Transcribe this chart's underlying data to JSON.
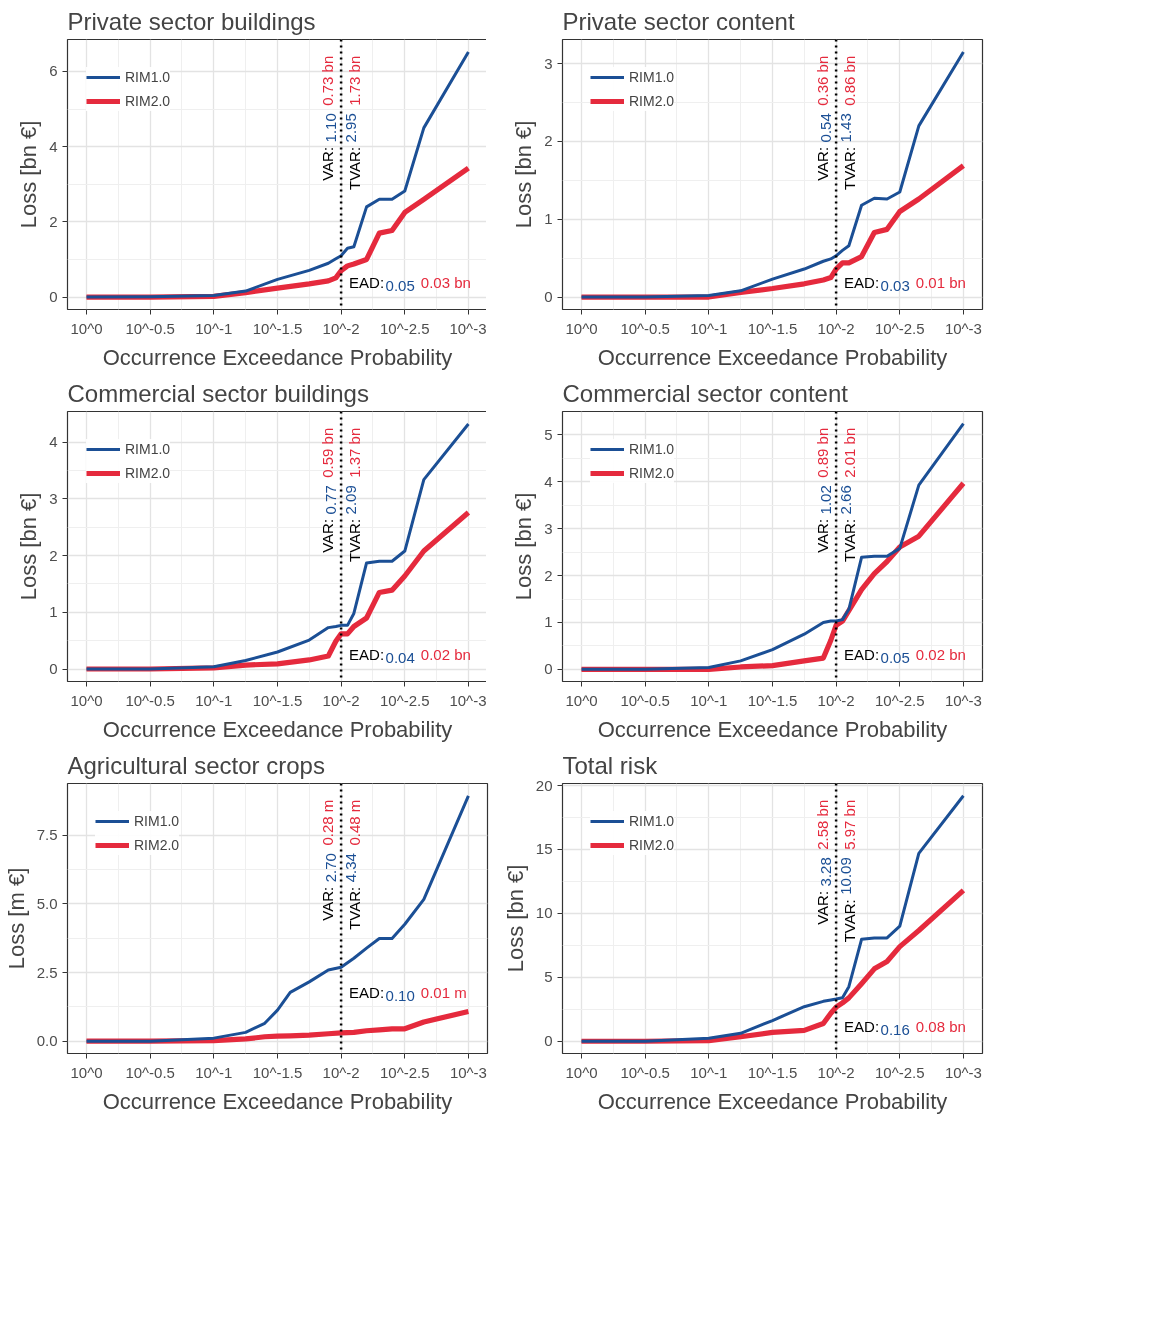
{
  "chart_data": [
    {
      "type": "line",
      "title": "Private sector buildings",
      "xlabel": "Occurrence Exceedance Probability",
      "ylabel": "Loss [bn €]",
      "log": "x",
      "grid": true,
      "legend": "top left",
      "line_style": "solid",
      "xlim": [
        1.41,
        0.000708
      ],
      "ylim": [
        -0.33,
        6.85
      ],
      "xticks": [
        {
          "value": 1,
          "label": "10^0"
        },
        {
          "value": 0.316,
          "label": "10^-0.5"
        },
        {
          "value": 0.1,
          "label": "10^-1"
        },
        {
          "value": 0.0316,
          "label": "10^-1.5"
        },
        {
          "value": 0.01,
          "label": "10^-2"
        },
        {
          "value": 0.00316,
          "label": "10^-2.5"
        },
        {
          "value": 0.001,
          "label": "10^-3"
        }
      ],
      "yticks": [
        0,
        2,
        4,
        6
      ],
      "x": [
        1,
        0.316,
        0.1,
        0.0562,
        0.0316,
        0.0178,
        0.0126,
        0.011,
        0.01,
        0.00891,
        0.00794,
        0.00631,
        0.00501,
        0.00398,
        0.00316,
        0.00224,
        0.001
      ],
      "series": [
        {
          "name": "RIM1.0",
          "color": "#1b4f95",
          "values": [
            0,
            0.01,
            0.04,
            0.16,
            0.47,
            0.71,
            0.9,
            1.02,
            1.1,
            1.3,
            1.34,
            2.4,
            2.6,
            2.6,
            2.82,
            4.5,
            6.52
          ]
        },
        {
          "name": "RIM2.0",
          "color": "#e52a3d",
          "values": [
            0,
            0,
            0.02,
            0.12,
            0.24,
            0.35,
            0.43,
            0.51,
            0.7,
            0.83,
            0.88,
            1.0,
            1.7,
            1.77,
            2.25,
            2.6,
            3.43
          ]
        }
      ],
      "ref_lines": [
        {
          "axis": "x",
          "value": 0.01,
          "color": "#000000",
          "line_style": "dotted"
        }
      ],
      "annotations": [
        "VAR:",
        "1.10",
        "0.73 bn",
        "TVAR:",
        "2.95",
        "1.73 bn",
        "EAD:",
        "0.05",
        "0.03 bn"
      ]
    },
    {
      "type": "line",
      "title": "Private sector content",
      "xlabel": "Occurrence Exceedance Probability",
      "ylabel": "Loss [bn €]",
      "log": "x",
      "grid": true,
      "legend": "top left",
      "line_style": "solid",
      "xlim": [
        1.41,
        0.000708
      ],
      "ylim": [
        -0.16,
        3.31
      ],
      "xticks": [
        {
          "value": 1,
          "label": "10^0"
        },
        {
          "value": 0.316,
          "label": "10^-0.5"
        },
        {
          "value": 0.1,
          "label": "10^-1"
        },
        {
          "value": 0.0316,
          "label": "10^-1.5"
        },
        {
          "value": 0.01,
          "label": "10^-2"
        },
        {
          "value": 0.00316,
          "label": "10^-2.5"
        },
        {
          "value": 0.001,
          "label": "10^-3"
        }
      ],
      "yticks": [
        0,
        1,
        2,
        3
      ],
      "x": [
        1,
        0.316,
        0.1,
        0.0562,
        0.0316,
        0.0178,
        0.0126,
        0.011,
        0.01,
        0.00891,
        0.00794,
        0.00631,
        0.00501,
        0.00398,
        0.00316,
        0.00224,
        0.001
      ],
      "series": [
        {
          "name": "RIM1.0",
          "color": "#1b4f95",
          "values": [
            0,
            0,
            0.02,
            0.08,
            0.23,
            0.36,
            0.46,
            0.49,
            0.53,
            0.6,
            0.66,
            1.18,
            1.27,
            1.26,
            1.35,
            2.2,
            3.15
          ]
        },
        {
          "name": "RIM2.0",
          "color": "#e52a3d",
          "values": [
            0,
            0,
            0,
            0.06,
            0.11,
            0.17,
            0.22,
            0.25,
            0.36,
            0.44,
            0.44,
            0.52,
            0.83,
            0.87,
            1.1,
            1.26,
            1.69
          ]
        }
      ],
      "ref_lines": [
        {
          "axis": "x",
          "value": 0.01,
          "color": "#000000",
          "line_style": "dotted"
        }
      ],
      "annotations": [
        "VAR:",
        "0.54",
        "0.36 bn",
        "TVAR:",
        "1.43",
        "0.86 bn",
        "EAD:",
        "0.03",
        "0.01 bn"
      ]
    },
    {
      "type": "line",
      "title": "Commercial sector buildings",
      "xlabel": "Occurrence Exceedance Probability",
      "ylabel": "Loss [bn €]",
      "log": "x",
      "grid": true,
      "legend": "top left",
      "line_style": "solid",
      "xlim": [
        1.41,
        0.000708
      ],
      "ylim": [
        -0.22,
        4.54
      ],
      "xticks": [
        {
          "value": 1,
          "label": "10^0"
        },
        {
          "value": 0.316,
          "label": "10^-0.5"
        },
        {
          "value": 0.1,
          "label": "10^-1"
        },
        {
          "value": 0.0316,
          "label": "10^-1.5"
        },
        {
          "value": 0.01,
          "label": "10^-2"
        },
        {
          "value": 0.00316,
          "label": "10^-2.5"
        },
        {
          "value": 0.001,
          "label": "10^-3"
        }
      ],
      "yticks": [
        0,
        1,
        2,
        3,
        4
      ],
      "x": [
        1,
        0.316,
        0.1,
        0.0562,
        0.0316,
        0.0178,
        0.0126,
        0.011,
        0.01,
        0.00891,
        0.00794,
        0.00631,
        0.00501,
        0.00398,
        0.00316,
        0.00224,
        0.001
      ],
      "series": [
        {
          "name": "RIM1.0",
          "color": "#1b4f95",
          "values": [
            0,
            0,
            0.04,
            0.15,
            0.3,
            0.51,
            0.73,
            0.75,
            0.77,
            0.77,
            0.98,
            1.87,
            1.9,
            1.9,
            2.08,
            3.34,
            4.32
          ]
        },
        {
          "name": "RIM2.0",
          "color": "#e52a3d",
          "values": [
            0,
            0,
            0.02,
            0.07,
            0.09,
            0.16,
            0.23,
            0.49,
            0.62,
            0.62,
            0.75,
            0.9,
            1.35,
            1.39,
            1.64,
            2.08,
            2.76
          ]
        }
      ],
      "ref_lines": [
        {
          "axis": "x",
          "value": 0.01,
          "color": "#000000",
          "line_style": "dotted"
        }
      ],
      "annotations": [
        "VAR:",
        "0.77",
        "0.59 bn",
        "TVAR:",
        "2.09",
        "1.37 bn",
        "EAD:",
        "0.04",
        "0.02 bn"
      ]
    },
    {
      "type": "line",
      "title": "Commercial sector content",
      "xlabel": "Occurrence Exceedance Probability",
      "ylabel": "Loss [bn €]",
      "log": "x",
      "grid": true,
      "legend": "top left",
      "line_style": "solid",
      "xlim": [
        1.41,
        0.000708
      ],
      "ylim": [
        -0.26,
        5.5
      ],
      "xticks": [
        {
          "value": 1,
          "label": "10^0"
        },
        {
          "value": 0.316,
          "label": "10^-0.5"
        },
        {
          "value": 0.1,
          "label": "10^-1"
        },
        {
          "value": 0.0316,
          "label": "10^-1.5"
        },
        {
          "value": 0.01,
          "label": "10^-2"
        },
        {
          "value": 0.00316,
          "label": "10^-2.5"
        },
        {
          "value": 0.001,
          "label": "10^-3"
        }
      ],
      "yticks": [
        0,
        1,
        2,
        3,
        4,
        5
      ],
      "x": [
        1,
        0.316,
        0.1,
        0.0562,
        0.0316,
        0.0178,
        0.0126,
        0.011,
        0.01,
        0.00891,
        0.00794,
        0.00631,
        0.00501,
        0.00398,
        0.00316,
        0.00224,
        0.001
      ],
      "series": [
        {
          "name": "RIM1.0",
          "color": "#1b4f95",
          "values": [
            0,
            0,
            0.04,
            0.18,
            0.42,
            0.75,
            1.0,
            1.03,
            1.03,
            1.06,
            1.28,
            2.39,
            2.41,
            2.41,
            2.58,
            3.93,
            5.24
          ]
        },
        {
          "name": "RIM2.0",
          "color": "#e52a3d",
          "values": [
            0,
            0,
            0,
            0.05,
            0.08,
            0.18,
            0.24,
            0.62,
            0.94,
            1.03,
            1.25,
            1.7,
            2.04,
            2.3,
            2.61,
            2.84,
            3.97
          ]
        }
      ],
      "ref_lines": [
        {
          "axis": "x",
          "value": 0.01,
          "color": "#000000",
          "line_style": "dotted"
        }
      ],
      "annotations": [
        "VAR:",
        "1.02",
        "0.89 bn",
        "TVAR:",
        "2.66",
        "2.01 bn",
        "EAD:",
        "0.05",
        "0.02 bn"
      ]
    },
    {
      "type": "line",
      "title": "Agricultural sector crops",
      "xlabel": "Occurrence Exceedance Probability",
      "ylabel": "Loss [m €]",
      "log": "x",
      "grid": true,
      "legend": "top left",
      "line_style": "solid",
      "xlim": [
        1.41,
        0.000708
      ],
      "ylim": [
        -0.45,
        9.39
      ],
      "xticks": [
        {
          "value": 1,
          "label": "10^0"
        },
        {
          "value": 0.316,
          "label": "10^-0.5"
        },
        {
          "value": 0.1,
          "label": "10^-1"
        },
        {
          "value": 0.0316,
          "label": "10^-1.5"
        },
        {
          "value": 0.01,
          "label": "10^-2"
        },
        {
          "value": 0.00316,
          "label": "10^-2.5"
        },
        {
          "value": 0.001,
          "label": "10^-3"
        }
      ],
      "yticks": [
        {
          "value": 0,
          "label": "0.0"
        },
        2.5,
        {
          "value": 5,
          "label": "5.0"
        },
        7.5
      ],
      "x": [
        1,
        0.316,
        0.1,
        0.0562,
        0.0398,
        0.0316,
        0.0251,
        0.0178,
        0.0126,
        0.01,
        0.00794,
        0.00631,
        0.00501,
        0.00398,
        0.00316,
        0.00224,
        0.001
      ],
      "series": [
        {
          "name": "RIM1.0",
          "color": "#1b4f95",
          "values": [
            0,
            0,
            0.11,
            0.32,
            0.65,
            1.13,
            1.78,
            2.16,
            2.59,
            2.69,
            3.02,
            3.39,
            3.74,
            3.74,
            4.26,
            5.17,
            8.94
          ]
        },
        {
          "name": "RIM2.0",
          "color": "#e52a3d",
          "values": [
            0,
            0,
            0.02,
            0.08,
            0.16,
            0.18,
            0.19,
            0.22,
            0.27,
            0.3,
            0.32,
            0.38,
            0.41,
            0.45,
            0.45,
            0.7,
            1.08
          ]
        }
      ],
      "ref_lines": [
        {
          "axis": "x",
          "value": 0.01,
          "color": "#000000",
          "line_style": "dotted"
        }
      ],
      "annotations": [
        "VAR:",
        "2.70",
        "0.28 m",
        "TVAR:",
        "4.34",
        "0.48 m",
        "EAD:",
        "0.10",
        "0.01 m"
      ]
    },
    {
      "type": "line",
      "title": "Total risk",
      "xlabel": "Occurrence Exceedance Probability",
      "ylabel": "Loss [bn €]",
      "log": "x",
      "grid": true,
      "legend": "top left",
      "line_style": "solid",
      "xlim": [
        1.41,
        0.000708
      ],
      "ylim": [
        -0.96,
        20.16
      ],
      "xticks": [
        {
          "value": 1,
          "label": "10^0"
        },
        {
          "value": 0.316,
          "label": "10^-0.5"
        },
        {
          "value": 0.1,
          "label": "10^-1"
        },
        {
          "value": 0.0316,
          "label": "10^-1.5"
        },
        {
          "value": 0.01,
          "label": "10^-2"
        },
        {
          "value": 0.00316,
          "label": "10^-2.5"
        },
        {
          "value": 0.001,
          "label": "10^-3"
        }
      ],
      "yticks": [
        0,
        5,
        10,
        15,
        20
      ],
      "x": [
        1,
        0.316,
        0.1,
        0.0562,
        0.0316,
        0.0178,
        0.0126,
        0.011,
        0.01,
        0.00891,
        0.00794,
        0.00631,
        0.00501,
        0.00398,
        0.00316,
        0.00224,
        0.001
      ],
      "series": [
        {
          "name": "RIM1.0",
          "color": "#1b4f95",
          "values": [
            0,
            0,
            0.23,
            0.62,
            1.62,
            2.7,
            3.12,
            3.23,
            3.3,
            3.4,
            4.27,
            7.97,
            8.08,
            8.08,
            9.0,
            14.7,
            19.2
          ]
        },
        {
          "name": "RIM2.0",
          "color": "#e52a3d",
          "values": [
            0,
            0,
            0.05,
            0.35,
            0.69,
            0.85,
            1.39,
            2.19,
            2.66,
            3.0,
            3.39,
            4.5,
            5.66,
            6.24,
            7.4,
            8.66,
            11.8
          ]
        }
      ],
      "ref_lines": [
        {
          "axis": "x",
          "value": 0.01,
          "color": "#000000",
          "line_style": "dotted"
        }
      ],
      "annotations": [
        "VAR:",
        "3.28",
        "2.58 bn",
        "TVAR:",
        "10.09",
        "5.97 bn",
        "EAD:",
        "0.16",
        "0.08 bn"
      ]
    }
  ]
}
